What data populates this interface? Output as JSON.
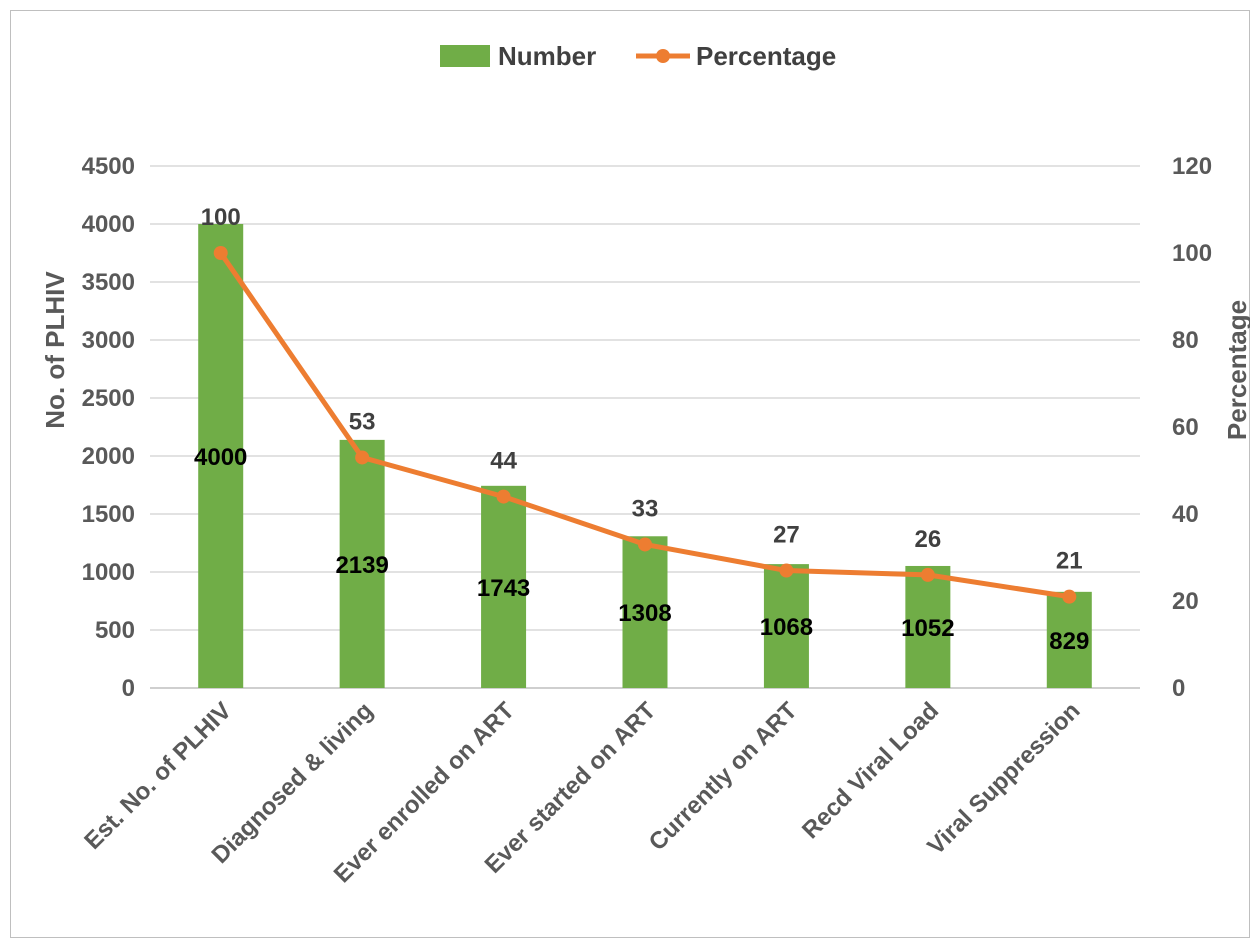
{
  "chart_data": {
    "type": "bar",
    "categories": [
      "Est. No. of PLHIV",
      "Diagnosed & living",
      "Ever enrolled on ART",
      "Ever started on ART",
      "Currently on ART",
      "Recd Viral Load",
      "Viral Suppression"
    ],
    "series": [
      {
        "name": "Number",
        "type": "bar",
        "axis": "left",
        "color": "#70ad47",
        "values": [
          4000,
          2139,
          1743,
          1308,
          1068,
          1052,
          829
        ]
      },
      {
        "name": "Percentage",
        "type": "line",
        "axis": "right",
        "color": "#ed7d31",
        "values": [
          100,
          53,
          44,
          33,
          27,
          26,
          21
        ]
      }
    ],
    "ylabel": "No. of PLHIV",
    "y2label": "Percentage",
    "ylim": [
      0,
      4500
    ],
    "y2lim": [
      0,
      120
    ],
    "yticks": [
      "0",
      "500",
      "1000",
      "1500",
      "2000",
      "2500",
      "3000",
      "3500",
      "4000",
      "4500"
    ],
    "y2ticks": [
      "0",
      "20",
      "40",
      "60",
      "80",
      "100",
      "120"
    ],
    "grid": true,
    "legend": "top"
  }
}
